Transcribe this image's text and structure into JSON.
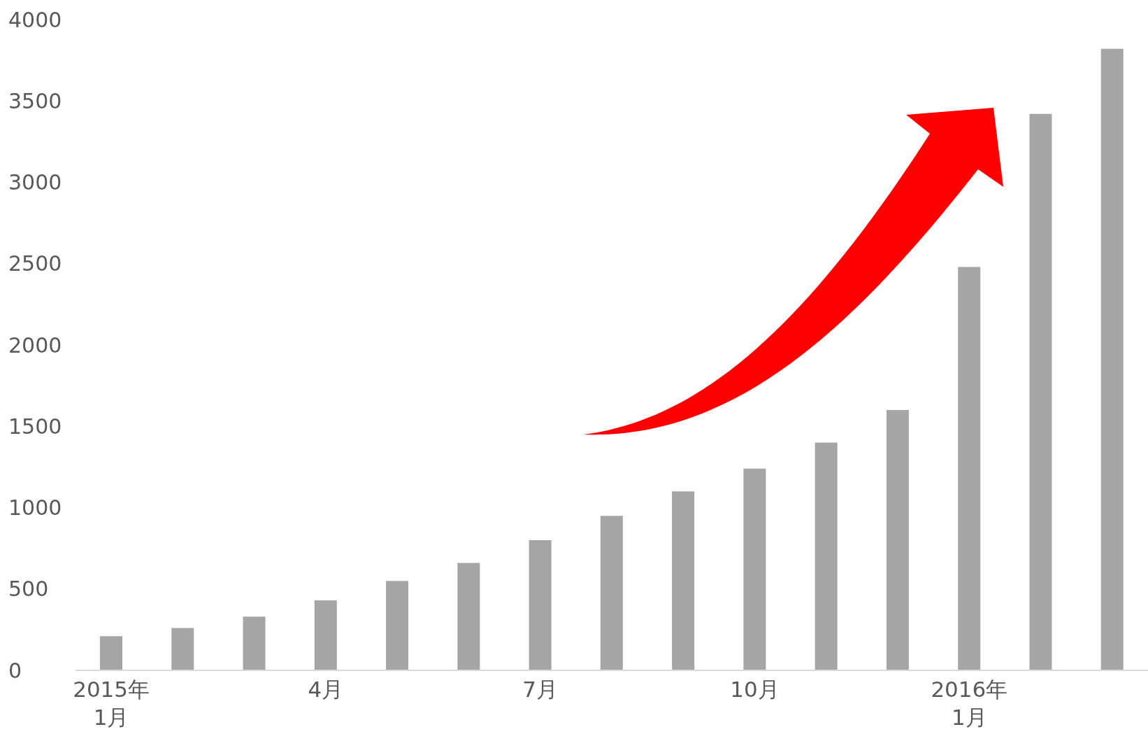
{
  "chart_data": {
    "type": "bar",
    "categories": [
      "2015年\n1月",
      null,
      null,
      "4月",
      null,
      null,
      "7月",
      null,
      null,
      "10月",
      null,
      null,
      "2016年\n1月",
      null,
      null
    ],
    "values": [
      210,
      260,
      330,
      430,
      550,
      660,
      800,
      950,
      1100,
      1240,
      1400,
      1600,
      2480,
      3420,
      3820
    ],
    "color": "#a5a5a5",
    "ylim": [
      0,
      4000
    ],
    "yticks": [
      0,
      500,
      1000,
      1500,
      2000,
      2500,
      3000,
      3500,
      4000
    ]
  }
}
